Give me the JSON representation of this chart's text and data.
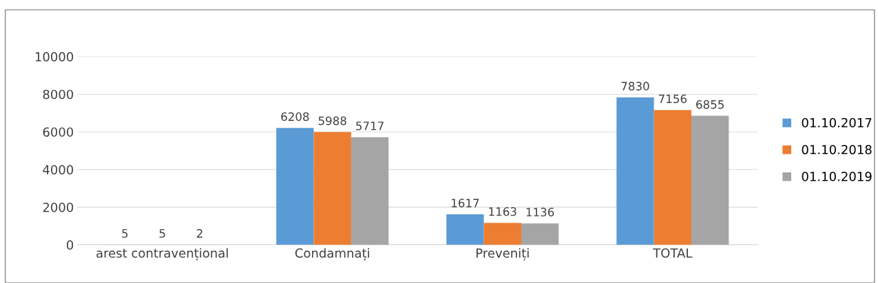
{
  "chart_data": {
    "type": "bar",
    "categories": [
      "arest contravențional",
      "Condamnați",
      "Preveniți",
      "TOTAL"
    ],
    "series": [
      {
        "name": "01.10.2017",
        "color": "#5b9bd5",
        "values": [
          5,
          6208,
          1617,
          7830
        ]
      },
      {
        "name": "01.10.2018",
        "color": "#ed7d31",
        "values": [
          5,
          5988,
          1163,
          7156
        ]
      },
      {
        "name": "01.10.2019",
        "color": "#a5a5a5",
        "values": [
          2,
          5717,
          1136,
          6855
        ]
      }
    ],
    "ylim": [
      0,
      10000
    ],
    "yticks": [
      0,
      2000,
      4000,
      6000,
      8000,
      10000
    ],
    "grid": "y",
    "legend": "right",
    "data_labels": true
  }
}
